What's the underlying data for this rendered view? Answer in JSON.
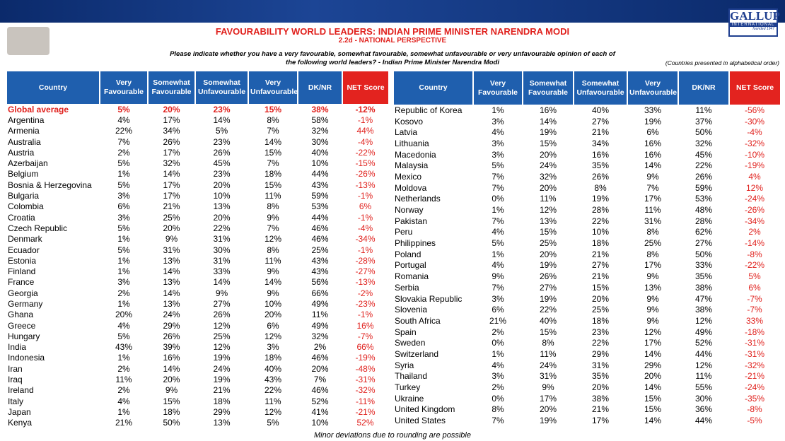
{
  "header": {
    "title": "FAVOURABILITY WORLD LEADERS: INDIAN PRIME MINISTER NARENDRA MODI",
    "subtitle": "2.2d - NATIONAL PERSPECTIVE",
    "question": [
      "Please indicate whether you have a very favourable, somewhat favourable, somewhat unfavourable or very unfavourable opinion of each of",
      "the following world leaders? - Indian Prime Minister Narendra Modi"
    ],
    "note": "(Countries presented in alphabetical order)",
    "logo": {
      "name": "GALLUP",
      "sub": "INTERNATIONAL",
      "founded": "founded 1947"
    }
  },
  "left_table": {
    "headers": [
      "Country",
      "Very Favourable",
      "Somewhat Favourable",
      "Somewhat Unfavourable",
      "Very Unfavourable",
      "DK/NR",
      "NET Score"
    ],
    "rows": [
      [
        "Global average",
        "5%",
        "20%",
        "23%",
        "15%",
        "38%",
        "-12%"
      ],
      [
        "Argentina",
        "4%",
        "17%",
        "14%",
        "8%",
        "58%",
        "-1%"
      ],
      [
        "Armenia",
        "22%",
        "34%",
        "5%",
        "7%",
        "32%",
        "44%"
      ],
      [
        "Australia",
        "7%",
        "26%",
        "23%",
        "14%",
        "30%",
        "-4%"
      ],
      [
        "Austria",
        "2%",
        "17%",
        "26%",
        "15%",
        "40%",
        "-22%"
      ],
      [
        "Azerbaijan",
        "5%",
        "32%",
        "45%",
        "7%",
        "10%",
        "-15%"
      ],
      [
        "Belgium",
        "1%",
        "14%",
        "23%",
        "18%",
        "44%",
        "-26%"
      ],
      [
        "Bosnia & Herzegovina",
        "5%",
        "17%",
        "20%",
        "15%",
        "43%",
        "-13%"
      ],
      [
        "Bulgaria",
        "3%",
        "17%",
        "10%",
        "11%",
        "59%",
        "-1%"
      ],
      [
        "Colombia",
        "6%",
        "21%",
        "13%",
        "8%",
        "53%",
        "6%"
      ],
      [
        "Croatia",
        "3%",
        "25%",
        "20%",
        "9%",
        "44%",
        "-1%"
      ],
      [
        "Czech Republic",
        "5%",
        "20%",
        "22%",
        "7%",
        "46%",
        "-4%"
      ],
      [
        "Denmark",
        "1%",
        "9%",
        "31%",
        "12%",
        "46%",
        "-34%"
      ],
      [
        "Ecuador",
        "5%",
        "31%",
        "30%",
        "8%",
        "25%",
        "-1%"
      ],
      [
        "Estonia",
        "1%",
        "13%",
        "31%",
        "11%",
        "43%",
        "-28%"
      ],
      [
        "Finland",
        "1%",
        "14%",
        "33%",
        "9%",
        "43%",
        "-27%"
      ],
      [
        "France",
        "3%",
        "13%",
        "14%",
        "14%",
        "56%",
        "-13%"
      ],
      [
        "Georgia",
        "2%",
        "14%",
        "9%",
        "9%",
        "66%",
        "-2%"
      ],
      [
        "Germany",
        "1%",
        "13%",
        "27%",
        "10%",
        "49%",
        "-23%"
      ],
      [
        "Ghana",
        "20%",
        "24%",
        "26%",
        "20%",
        "11%",
        "-1%"
      ],
      [
        "Greece",
        "4%",
        "29%",
        "12%",
        "6%",
        "49%",
        "16%"
      ],
      [
        "Hungary",
        "5%",
        "26%",
        "25%",
        "12%",
        "32%",
        "-7%"
      ],
      [
        "India",
        "43%",
        "39%",
        "12%",
        "3%",
        "2%",
        "66%"
      ],
      [
        "Indonesia",
        "1%",
        "16%",
        "19%",
        "18%",
        "46%",
        "-19%"
      ],
      [
        "Iran",
        "2%",
        "14%",
        "24%",
        "40%",
        "20%",
        "-48%"
      ],
      [
        "Iraq",
        "11%",
        "20%",
        "19%",
        "43%",
        "7%",
        "-31%"
      ],
      [
        "Ireland",
        "2%",
        "9%",
        "21%",
        "22%",
        "46%",
        "-32%"
      ],
      [
        "Italy",
        "4%",
        "15%",
        "18%",
        "11%",
        "52%",
        "-11%"
      ],
      [
        "Japan",
        "1%",
        "18%",
        "29%",
        "12%",
        "41%",
        "-21%"
      ],
      [
        "Kenya",
        "21%",
        "50%",
        "13%",
        "5%",
        "10%",
        "52%"
      ]
    ]
  },
  "right_table": {
    "headers": [
      "Country",
      "Very Favourable",
      "Somewhat Favourable",
      "Somewhat Unfavourable",
      "Very Unfavourable",
      "DK/NR",
      "NET Score"
    ],
    "rows": [
      [
        "Republic of Korea",
        "1%",
        "16%",
        "40%",
        "33%",
        "11%",
        "-56%"
      ],
      [
        "Kosovo",
        "3%",
        "14%",
        "27%",
        "19%",
        "37%",
        "-30%"
      ],
      [
        "Latvia",
        "4%",
        "19%",
        "21%",
        "6%",
        "50%",
        "-4%"
      ],
      [
        "Lithuania",
        "3%",
        "15%",
        "34%",
        "16%",
        "32%",
        "-32%"
      ],
      [
        "Macedonia",
        "3%",
        "20%",
        "16%",
        "16%",
        "45%",
        "-10%"
      ],
      [
        "Malaysia",
        "5%",
        "24%",
        "35%",
        "14%",
        "22%",
        "-19%"
      ],
      [
        "Mexico",
        "7%",
        "32%",
        "26%",
        "9%",
        "26%",
        "4%"
      ],
      [
        "Moldova",
        "7%",
        "20%",
        "8%",
        "7%",
        "59%",
        "12%"
      ],
      [
        "Netherlands",
        "0%",
        "11%",
        "19%",
        "17%",
        "53%",
        "-24%"
      ],
      [
        "Norway",
        "1%",
        "12%",
        "28%",
        "11%",
        "48%",
        "-26%"
      ],
      [
        "Pakistan",
        "7%",
        "13%",
        "22%",
        "31%",
        "28%",
        "-34%"
      ],
      [
        "Peru",
        "4%",
        "15%",
        "10%",
        "8%",
        "62%",
        "2%"
      ],
      [
        "Philippines",
        "5%",
        "25%",
        "18%",
        "25%",
        "27%",
        "-14%"
      ],
      [
        "Poland",
        "1%",
        "20%",
        "21%",
        "8%",
        "50%",
        "-8%"
      ],
      [
        "Portugal",
        "4%",
        "19%",
        "27%",
        "17%",
        "33%",
        "-22%"
      ],
      [
        "Romania",
        "9%",
        "26%",
        "21%",
        "9%",
        "35%",
        "5%"
      ],
      [
        "Serbia",
        "7%",
        "27%",
        "15%",
        "13%",
        "38%",
        "6%"
      ],
      [
        "Slovakia Republic",
        "3%",
        "19%",
        "20%",
        "9%",
        "47%",
        "-7%"
      ],
      [
        "Slovenia",
        "6%",
        "22%",
        "25%",
        "9%",
        "38%",
        "-7%"
      ],
      [
        "South Africa",
        "21%",
        "40%",
        "18%",
        "9%",
        "12%",
        "33%"
      ],
      [
        "Spain",
        "2%",
        "15%",
        "23%",
        "12%",
        "49%",
        "-18%"
      ],
      [
        "Sweden",
        "0%",
        "8%",
        "22%",
        "17%",
        "52%",
        "-31%"
      ],
      [
        "Switzerland",
        "1%",
        "11%",
        "29%",
        "14%",
        "44%",
        "-31%"
      ],
      [
        "Syria",
        "4%",
        "24%",
        "31%",
        "29%",
        "12%",
        "-32%"
      ],
      [
        "Thailand",
        "3%",
        "31%",
        "35%",
        "20%",
        "11%",
        "-21%"
      ],
      [
        "Turkey",
        "2%",
        "9%",
        "20%",
        "14%",
        "55%",
        "-24%"
      ],
      [
        "Ukraine",
        "0%",
        "17%",
        "38%",
        "15%",
        "30%",
        "-35%"
      ],
      [
        "United Kingdom",
        "8%",
        "20%",
        "21%",
        "15%",
        "36%",
        "-8%"
      ],
      [
        "United States",
        "7%",
        "19%",
        "17%",
        "14%",
        "44%",
        "-5%"
      ]
    ]
  },
  "footer": "Minor deviations due to rounding are possible"
}
